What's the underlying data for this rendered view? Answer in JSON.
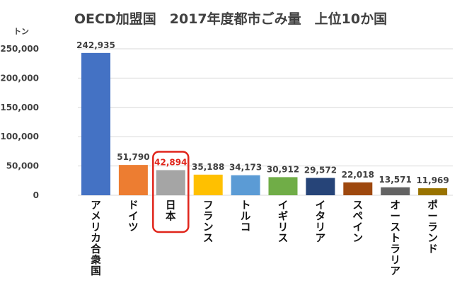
{
  "chart_data": {
    "type": "bar",
    "title": "OECD加盟国　2017年度都市ごみ量　上位10か国",
    "ylabel": "トン",
    "xlabel": "",
    "ylim": [
      0,
      250000
    ],
    "yticks": [
      0,
      50000,
      100000,
      150000,
      200000,
      250000
    ],
    "ytick_labels": [
      "0",
      "50,000",
      "100,000",
      "150,000",
      "200,000",
      "250,000"
    ],
    "grid": true,
    "legend": "none",
    "categories": [
      "アメリカ合衆国",
      "ドイツ",
      "日本",
      "フランス",
      "トルコ",
      "イギリス",
      "イタリア",
      "スペイン",
      "オーストラリア",
      "ポーランド"
    ],
    "values": [
      242935,
      51790,
      42894,
      35188,
      34173,
      30912,
      29572,
      22018,
      13571,
      11969
    ],
    "value_labels": [
      "242,935",
      "51,790",
      "42,894",
      "35,188",
      "34,173",
      "30,912",
      "29,572",
      "22,018",
      "13,571",
      "11,969"
    ],
    "colors": [
      "#4472c4",
      "#ed7d31",
      "#a5a5a5",
      "#ffc000",
      "#5b9bd5",
      "#70ad47",
      "#264478",
      "#9e480e",
      "#636363",
      "#997300"
    ],
    "highlight": {
      "category": "日本",
      "label_color": "#e0251b",
      "box_color": "#e0251b"
    }
  }
}
